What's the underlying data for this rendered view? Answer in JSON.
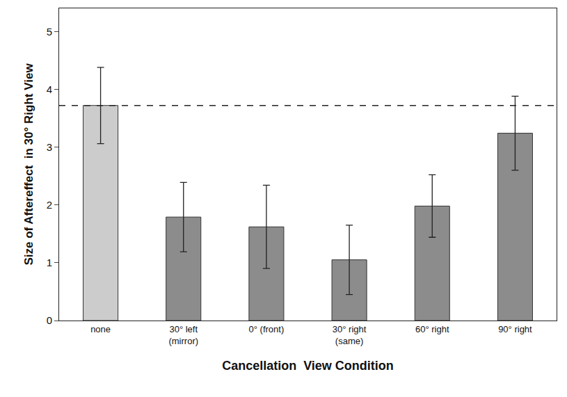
{
  "chart_data": {
    "type": "bar",
    "x_label": "Cancellation  View Condition",
    "y_label": "Size of Aftereffect  in 30° Right View",
    "categories": [
      "none",
      "30° left\n(mirror)",
      "0° (front)",
      "30° right\n(same)",
      "60° right",
      "90° right"
    ],
    "values": [
      3.72,
      1.79,
      1.62,
      1.05,
      1.98,
      3.24
    ],
    "errors": [
      0.66,
      0.6,
      0.72,
      0.6,
      0.54,
      0.64
    ],
    "colors": [
      "#cccccc",
      "#8c8c8c",
      "#8c8c8c",
      "#8c8c8c",
      "#8c8c8c",
      "#8c8c8c"
    ],
    "reference_line": 3.72,
    "ylim": [
      0,
      5.4
    ],
    "yticks": [
      0,
      1,
      2,
      3,
      4,
      5
    ],
    "grid": false
  }
}
